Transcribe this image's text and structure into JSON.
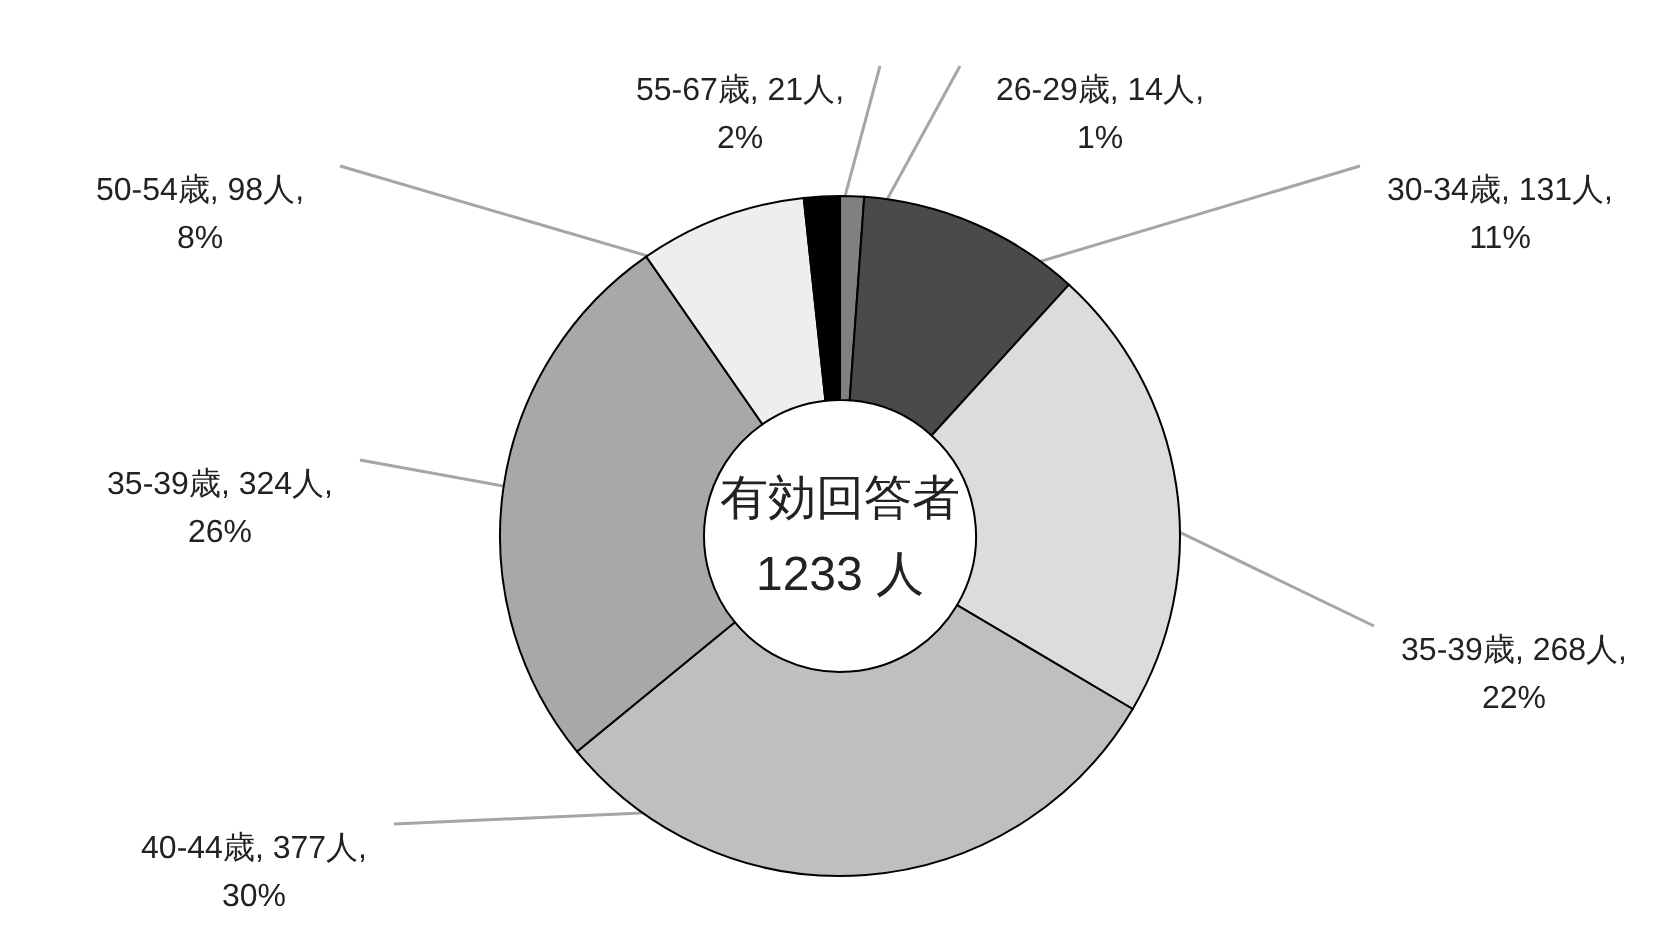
{
  "chart_data": {
    "type": "donut",
    "categories": [
      "26-29歳",
      "30-34歳",
      "35-39歳",
      "40-44歳",
      "35-39歳",
      "50-54歳",
      "55-67歳"
    ],
    "values": [
      14,
      131,
      268,
      377,
      324,
      98,
      21
    ],
    "colors": [
      "#808080",
      "#4a4a4a",
      "#dcdcdc",
      "#bfbfbf",
      "#a8a8a8",
      "#eeeeee",
      "#000000"
    ],
    "value_labels": [
      "14人, 1%",
      "131人, 11%",
      "268人, 22%",
      "377人, 30%",
      "324人, 26%",
      "98人, 8%",
      "21人, 2%"
    ],
    "annotations": [
      "有効回答者",
      "1233 人"
    ]
  }
}
